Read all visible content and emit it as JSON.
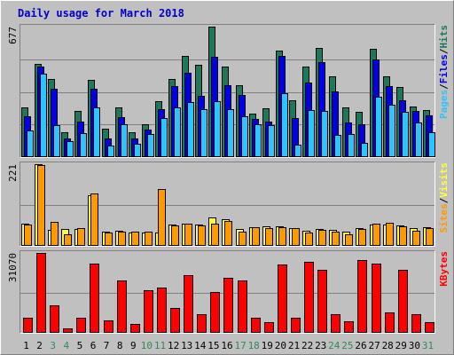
{
  "title": "Daily usage for March 2018",
  "colors": {
    "background": "#c0c0c0",
    "hits": "#1b7a5a",
    "files": "#0000e6",
    "pages": "#2ec4ff",
    "visits": "#ffff3a",
    "sites": "#ff9900",
    "kbytes": "#ff0000",
    "title": "#0000cc",
    "weekend_day": "#2e8b57",
    "weekday": "#000000"
  },
  "chart_data": [
    {
      "type": "bar",
      "panel": "hits-files-pages",
      "ylabel_parts": [
        "Pages",
        "Files",
        "Hits"
      ],
      "ymax_label": "677",
      "ylim": [
        0,
        677
      ],
      "categories": [
        "1",
        "2",
        "3",
        "4",
        "5",
        "6",
        "7",
        "8",
        "9",
        "10",
        "11",
        "12",
        "13",
        "14",
        "15",
        "16",
        "17",
        "18",
        "19",
        "20",
        "21",
        "22",
        "23",
        "24",
        "25",
        "26",
        "27",
        "28",
        "29",
        "30",
        "31"
      ],
      "series": [
        {
          "name": "Hits",
          "values": [
            258,
            483,
            407,
            130,
            239,
            402,
            149,
            259,
            127,
            171,
            290,
            404,
            523,
            477,
            677,
            471,
            375,
            227,
            252,
            553,
            295,
            469,
            568,
            419,
            258,
            233,
            561,
            419,
            362,
            262,
            245
          ]
        },
        {
          "name": "Files",
          "values": [
            212,
            469,
            353,
            98,
            185,
            353,
            98,
            205,
            98,
            141,
            247,
            370,
            437,
            316,
            522,
            375,
            324,
            196,
            186,
            523,
            203,
            387,
            494,
            339,
            178,
            169,
            508,
            370,
            293,
            239,
            217
          ]
        },
        {
          "name": "Pages",
          "values": [
            136,
            432,
            168,
            85,
            126,
            259,
            60,
            169,
            70,
            118,
            202,
            258,
            284,
            250,
            291,
            250,
            214,
            170,
            167,
            333,
            65,
            243,
            241,
            116,
            118,
            72,
            313,
            270,
            233,
            178,
            130
          ]
        }
      ]
    },
    {
      "type": "bar",
      "panel": "visits-sites",
      "ylabel_parts": [
        "Sites",
        "Visits"
      ],
      "ymax_label": "221",
      "ylim": [
        0,
        221
      ],
      "series": [
        {
          "name": "Visits",
          "values": [
            61,
            221,
            44,
            46,
            45,
            137,
            38,
            41,
            36,
            37,
            36,
            58,
            59,
            58,
            78,
            72,
            45,
            51,
            52,
            54,
            47,
            41,
            46,
            44,
            38,
            48,
            57,
            57,
            56,
            49,
            51
          ]
        },
        {
          "name": "Sites",
          "values": [
            58,
            218,
            64,
            31,
            48,
            142,
            37,
            39,
            38,
            39,
            153,
            56,
            59,
            56,
            61,
            67,
            38,
            50,
            48,
            50,
            47,
            37,
            44,
            38,
            32,
            45,
            60,
            62,
            53,
            41,
            48
          ]
        }
      ]
    },
    {
      "type": "bar",
      "panel": "kbytes",
      "ylabel_parts": [
        "KBytes"
      ],
      "ymax_label": "31070",
      "ylim": [
        0,
        31070
      ],
      "series": [
        {
          "name": "KBytes",
          "values": [
            5971,
            31070,
            10648,
            1831,
            5971,
            27005,
            4922,
            20225,
            3441,
            16612,
            17743,
            9501,
            22356,
            7232,
            16046,
            21335,
            20225,
            5971,
            4154,
            26620,
            5971,
            27780,
            24670,
            7232,
            4531,
            28166,
            27005,
            7952,
            24670,
            7232,
            4154
          ]
        }
      ]
    }
  ]
}
